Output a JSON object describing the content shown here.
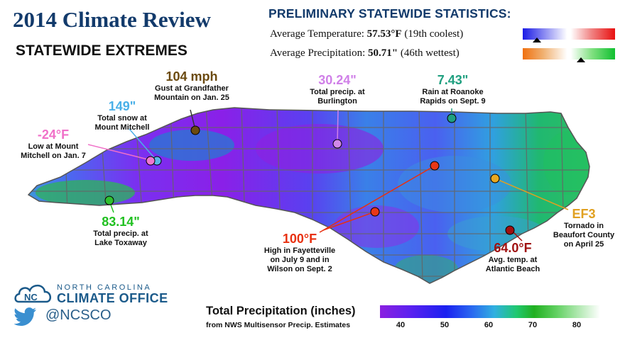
{
  "title": "2014 Climate Review",
  "subtitle": "STATEWIDE EXTREMES",
  "stats": {
    "heading": "PRELIMINARY STATEWIDE STATISTICS:",
    "temp_label": "Average Temperature:",
    "temp_value": "57.53°F",
    "temp_rank": "(19th coolest)",
    "precip_label": "Average Precipitation:",
    "precip_value": "50.71\"",
    "precip_rank": "(46th wettest)"
  },
  "extremes": [
    {
      "id": "wind",
      "value": "104 mph",
      "line1": "Gust at Grandfather",
      "line2": "Mountain on Jan. 25",
      "line3": "",
      "color": "#6b4a10",
      "dot": "#6b4a10"
    },
    {
      "id": "snow",
      "value": "149\"",
      "line1": "Total snow at",
      "line2": "Mount Mitchell",
      "line3": "",
      "color": "#4ab0e8",
      "dot": "#5ab8e8"
    },
    {
      "id": "low",
      "value": "-24°F",
      "line1": "Low at Mount",
      "line2": "Mitchell on Jan. 7",
      "line3": "",
      "color": "#f070c8",
      "dot": "#f078d0"
    },
    {
      "id": "precip-burlington",
      "value": "30.24\"",
      "line1": "Total precip. at",
      "line2": "Burlington",
      "line3": "",
      "color": "#d080e8",
      "dot": "#d088e8"
    },
    {
      "id": "rain-roanoke",
      "value": "7.43\"",
      "line1": "Rain at Roanoke",
      "line2": "Rapids on Sept. 9",
      "line3": "",
      "color": "#20a080",
      "dot": "#20a080"
    },
    {
      "id": "precip-toxaway",
      "value": "83.14\"",
      "line1": "Total precip. at",
      "line2": "Lake Toxaway",
      "line3": "",
      "color": "#20c020",
      "dot": "#30c030"
    },
    {
      "id": "high",
      "value": "100°F",
      "line1": "High in Fayetteville",
      "line2": "on July 9 and in",
      "line3": "Wilson on Sept. 2",
      "color": "#e83010",
      "dot": "#e83818"
    },
    {
      "id": "tornado",
      "value": "EF3",
      "line1": "Tornado in",
      "line2": "Beaufort County",
      "line3": "on April 25",
      "color": "#e0a020",
      "dot": "#e8a820"
    },
    {
      "id": "avg-temp",
      "value": "64.0°F",
      "line1": "Avg. temp. at",
      "line2": "Atlantic Beach",
      "line3": "",
      "color": "#a01010",
      "dot": "#a01010"
    }
  ],
  "legend": {
    "title": "Total Precipitation (inches)",
    "subtitle": "from NWS Multisensor Precip. Estimates",
    "ticks": [
      "40",
      "50",
      "60",
      "70",
      "80"
    ]
  },
  "branding": {
    "line1": "NORTH CAROLINA",
    "line2": "CLIMATE OFFICE",
    "twitter_handle": "@NCSCO",
    "logo_icon": "nc-cloud-logo-icon",
    "social_icon": "twitter-bird-icon"
  },
  "colors": {
    "title": "#123a6b",
    "temp_scale_cool": "#1a1ae6",
    "temp_scale_warm": "#e81010",
    "precip_scale_dry": "#f07010",
    "precip_scale_wet": "#10c030"
  }
}
